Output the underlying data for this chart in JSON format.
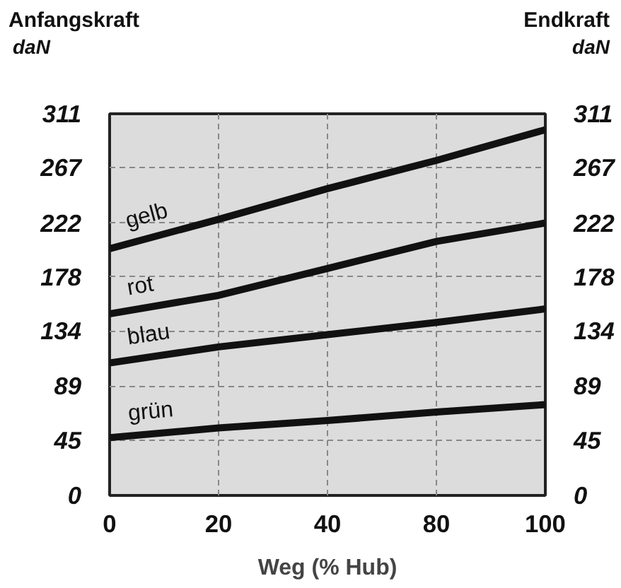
{
  "chart_data": {
    "type": "line",
    "ylabel": "Anfangskraft\ndaN",
    "y2label": "Endkraft\ndaN",
    "xlabel": "Weg (% Hub)",
    "categories": [
      "0",
      "20",
      "40",
      "80",
      "100"
    ],
    "ylim": [
      0,
      311
    ],
    "yticks": [
      0,
      45,
      89,
      134,
      178,
      222,
      267,
      311
    ],
    "y2lim": [
      0,
      311
    ],
    "y2ticks": [
      0,
      45,
      89,
      134,
      178,
      222,
      267,
      311
    ],
    "grid": true,
    "line_style": "solid",
    "series": [
      {
        "name": "gelb",
        "color": "#111111",
        "values": [
          201,
          225,
          250,
          273,
          298
        ]
      },
      {
        "name": "rot",
        "color": "#111111",
        "values": [
          148,
          163,
          185,
          207,
          222
        ]
      },
      {
        "name": "blau",
        "color": "#111111",
        "values": [
          108,
          121,
          131,
          141,
          152
        ]
      },
      {
        "name": "grün",
        "color": "#111111",
        "values": [
          47,
          55,
          61,
          68,
          74
        ]
      }
    ]
  }
}
